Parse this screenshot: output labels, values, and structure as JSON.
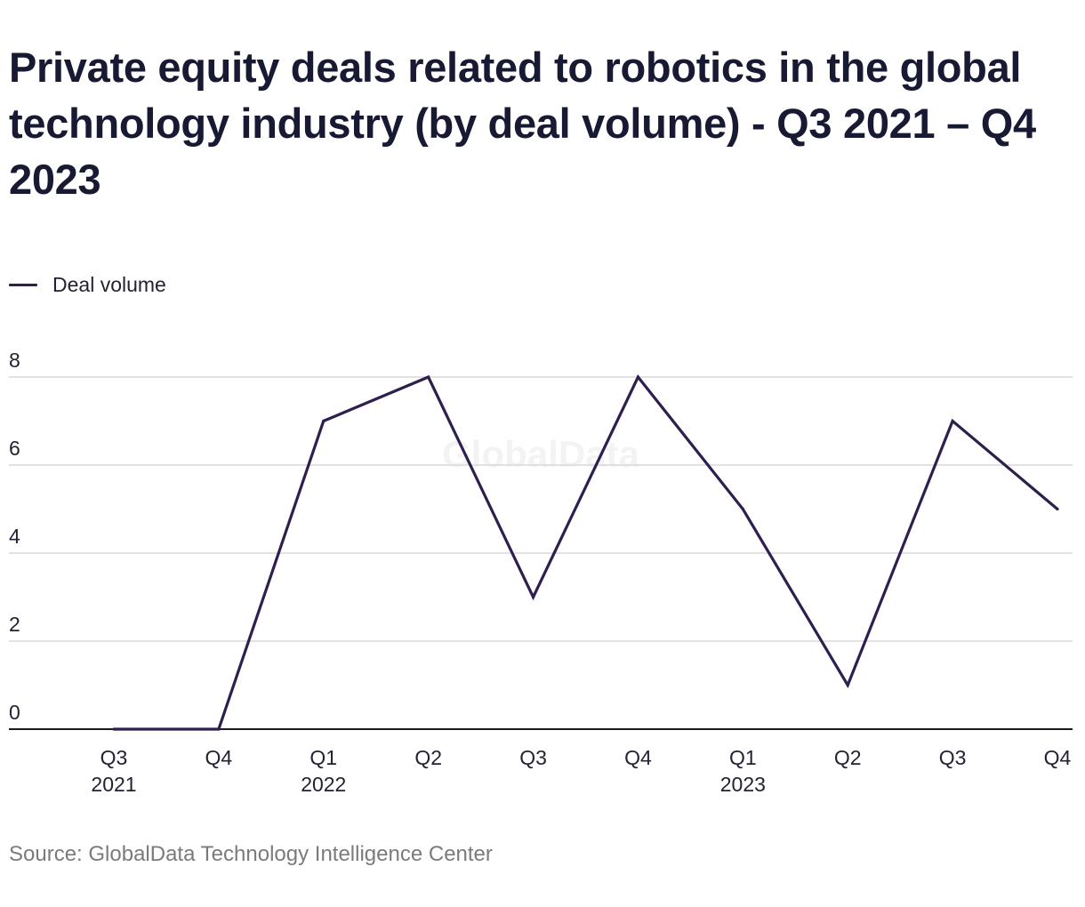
{
  "chart_data": {
    "type": "line",
    "title": "Private equity deals related to robotics in the global technology industry (by deal volume) - Q3 2021 – Q4 2023",
    "series": [
      {
        "name": "Deal volume",
        "color": "#2e1f4f",
        "values": [
          0,
          0,
          7,
          8,
          3,
          8,
          5,
          1,
          7,
          5
        ]
      }
    ],
    "categories": [
      {
        "quarter": "Q3",
        "year": "2021"
      },
      {
        "quarter": "Q4",
        "year": ""
      },
      {
        "quarter": "Q1",
        "year": "2022"
      },
      {
        "quarter": "Q2",
        "year": ""
      },
      {
        "quarter": "Q3",
        "year": ""
      },
      {
        "quarter": "Q4",
        "year": ""
      },
      {
        "quarter": "Q1",
        "year": "2023"
      },
      {
        "quarter": "Q2",
        "year": ""
      },
      {
        "quarter": "Q3",
        "year": ""
      },
      {
        "quarter": "Q4",
        "year": ""
      }
    ],
    "y_ticks": [
      0,
      2,
      4,
      6,
      8
    ],
    "ylim": [
      0,
      8
    ],
    "grid": true,
    "legend_position": "top-left",
    "watermark": "GlobalData",
    "source": "Source: GlobalData Technology Intelligence Center"
  }
}
